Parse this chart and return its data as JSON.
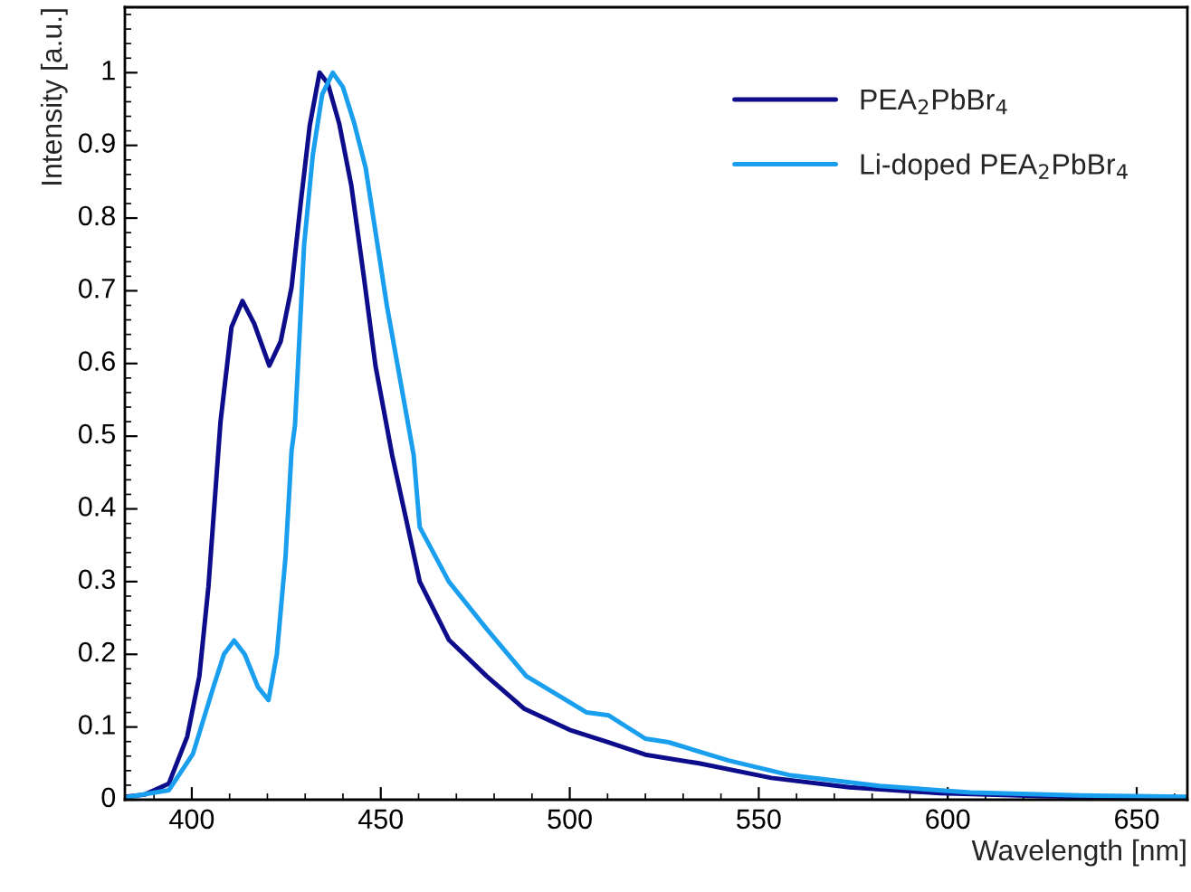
{
  "chart_data": {
    "type": "line",
    "xlabel": "Wavelength [nm]",
    "ylabel": "Intensity [a.u.]",
    "xlim": [
      382.3,
      663.4
    ],
    "ylim": [
      0,
      1.09
    ],
    "xticks": [
      400,
      450,
      500,
      550,
      600,
      650
    ],
    "yticks": [
      0,
      0.1,
      0.2,
      0.3,
      0.4,
      0.5,
      0.6,
      0.7,
      0.8,
      0.9,
      1
    ],
    "grid": false,
    "legend": "top right",
    "marker": "none",
    "line_style": "solid",
    "series": [
      {
        "name": "PEA$_{2}$PbBr$_{4}$",
        "color": "#0d0d8c",
        "x": [
          382.3,
          387.5,
          393.9,
          398.8,
          402,
          404.4,
          407.6,
          410.5,
          413.4,
          416.5,
          420.5,
          423.5,
          426.4,
          428.8,
          431.2,
          433.8,
          436,
          439,
          442.2,
          445.5,
          448.6,
          453,
          460.3,
          468,
          478,
          488,
          500,
          510.3,
          520,
          534.2,
          553.3,
          574,
          598,
          625,
          650,
          663.4
        ],
        "values": [
          0.004,
          0.007,
          0.022,
          0.087,
          0.17,
          0.293,
          0.52,
          0.65,
          0.686,
          0.655,
          0.597,
          0.63,
          0.705,
          0.82,
          0.927,
          1.0,
          0.985,
          0.93,
          0.845,
          0.72,
          0.597,
          0.474,
          0.3,
          0.22,
          0.17,
          0.125,
          0.096,
          0.079,
          0.062,
          0.05,
          0.03,
          0.017,
          0.009,
          0.005,
          0.003,
          0.002
        ]
      },
      {
        "name": "Li-doped PEA$_{2}$PbBr$_{4}$",
        "color": "#1a9fef",
        "x": [
          382.3,
          393.9,
          400.3,
          405.6,
          408.5,
          411.2,
          414,
          417.5,
          420.3,
          422.5,
          424.8,
          426.4,
          427.3,
          429.7,
          432,
          434.5,
          437.3,
          440,
          443,
          446,
          451.6,
          458.7,
          460.3,
          468,
          478,
          488.5,
          504.5,
          510.3,
          520,
          526.2,
          542,
          558,
          582,
          606,
          635,
          663.4
        ],
        "values": [
          0.003,
          0.013,
          0.063,
          0.153,
          0.2,
          0.219,
          0.2,
          0.155,
          0.137,
          0.2,
          0.334,
          0.48,
          0.515,
          0.762,
          0.886,
          0.97,
          1.0,
          0.98,
          0.93,
          0.869,
          0.68,
          0.474,
          0.375,
          0.3,
          0.235,
          0.17,
          0.12,
          0.116,
          0.084,
          0.079,
          0.054,
          0.034,
          0.019,
          0.01,
          0.006,
          0.004
        ]
      }
    ]
  }
}
